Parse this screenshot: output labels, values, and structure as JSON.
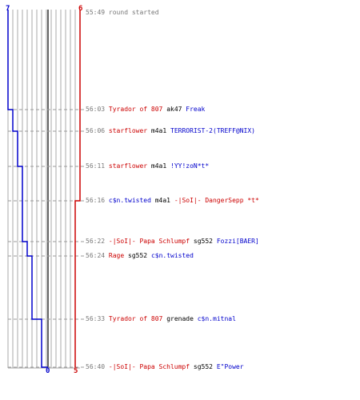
{
  "scores": {
    "blue_top": "7",
    "red_top": "6",
    "blue_bottom": "0",
    "red_bottom": "5"
  },
  "colors": {
    "blue": "#0000cc",
    "red": "#cc0000",
    "grid": "#aaaaaa",
    "center": "#666666",
    "dash": "#999999",
    "time": "#777777"
  },
  "events": [
    {
      "time": "55:49",
      "parts": [
        {
          "text": "round started",
          "color": "gray"
        }
      ]
    },
    {
      "time": "56:03",
      "parts": [
        {
          "text": "Tyrador of 807",
          "color": "red"
        },
        {
          "text": "ak47",
          "color": "black"
        },
        {
          "text": "Freak",
          "color": "blue"
        }
      ]
    },
    {
      "time": "56:06",
      "parts": [
        {
          "text": "starflower",
          "color": "red"
        },
        {
          "text": "m4a1",
          "color": "black"
        },
        {
          "text": "TERRORIST-2(TREFF@NIX)",
          "color": "blue"
        }
      ]
    },
    {
      "time": "56:11",
      "parts": [
        {
          "text": "starflower",
          "color": "red"
        },
        {
          "text": "m4a1",
          "color": "black"
        },
        {
          "text": "!YY!zoN*t*",
          "color": "blue"
        }
      ]
    },
    {
      "time": "56:16",
      "parts": [
        {
          "text": "c$n.twisted",
          "color": "blue"
        },
        {
          "text": "m4a1",
          "color": "black"
        },
        {
          "text": "-|SoI|- DangerSepp *t*",
          "color": "red"
        }
      ]
    },
    {
      "time": "56:22",
      "parts": [
        {
          "text": "-|SoI|- Papa Schlumpf ",
          "color": "red"
        },
        {
          "text": "sg552",
          "color": "black"
        },
        {
          "text": "Fozzi[BAER]",
          "color": "blue"
        }
      ]
    },
    {
      "time": "56:24",
      "parts": [
        {
          "text": "Rage",
          "color": "red"
        },
        {
          "text": "sg552",
          "color": "black"
        },
        {
          "text": "c$n.twisted",
          "color": "blue"
        }
      ]
    },
    {
      "time": "56:33",
      "parts": [
        {
          "text": "Tyrador of 807",
          "color": "red"
        },
        {
          "text": "grenade",
          "color": "black"
        },
        {
          "text": "c$n.mitnal",
          "color": "blue"
        }
      ]
    },
    {
      "time": "56:40",
      "parts": [
        {
          "text": "-|SoI|- Papa Schlumpf ",
          "color": "red"
        },
        {
          "text": "sg552",
          "color": "black"
        },
        {
          "text": "E\"Power",
          "color": "blue"
        }
      ]
    }
  ]
}
